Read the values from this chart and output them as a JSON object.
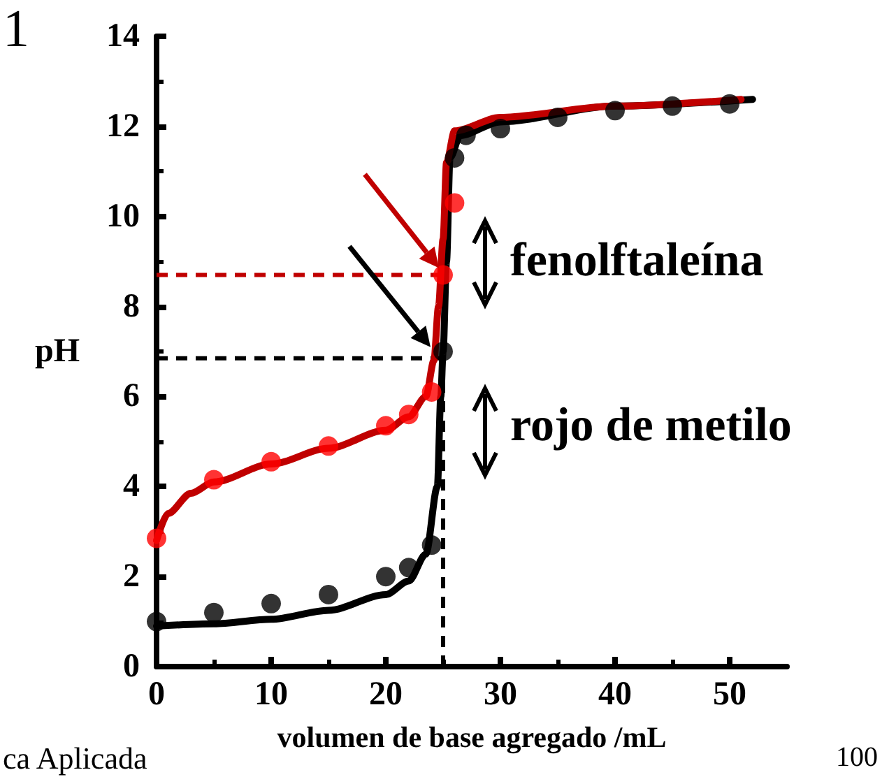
{
  "chart_data": {
    "type": "line",
    "xlabel": "volumen de base agregado /mL",
    "ylabel": "pH",
    "xlim": [
      0,
      55
    ],
    "xticks": [
      0,
      10,
      20,
      30,
      40,
      50
    ],
    "ylim": [
      0,
      14
    ],
    "yticks": [
      0,
      2,
      4,
      6,
      8,
      10,
      12,
      14
    ],
    "grid": false,
    "marker": "circle",
    "series": [
      {
        "color": "#000000",
        "marker": "none",
        "x": [
          0,
          5,
          10,
          15,
          20,
          22,
          23.5,
          24.5,
          24.8,
          25,
          25.3,
          25.6,
          26.5,
          30,
          40,
          52
        ],
        "values": [
          0.9,
          0.95,
          1.05,
          1.25,
          1.6,
          1.9,
          2.5,
          4,
          6,
          7,
          9,
          11.3,
          11.8,
          12.1,
          12.45,
          12.6
        ]
      },
      {
        "color": "#c00000",
        "marker": "none",
        "x": [
          0,
          1,
          3,
          5,
          10,
          15,
          20,
          22,
          23.5,
          24.2,
          24.6,
          25,
          25.3,
          26,
          30,
          40,
          51
        ],
        "values": [
          2.8,
          3.4,
          3.85,
          4.1,
          4.5,
          4.85,
          5.25,
          5.55,
          6,
          6.8,
          8,
          9.5,
          11.2,
          11.9,
          12.2,
          12.45,
          12.6
        ]
      },
      {
        "type": "scatter",
        "color": "#000000",
        "x": [
          0,
          5,
          10,
          15,
          20,
          22,
          24,
          25,
          26,
          27,
          30,
          35,
          40,
          45,
          50
        ],
        "values": [
          1,
          1.2,
          1.4,
          1.6,
          2,
          2.2,
          2.7,
          7,
          11.3,
          11.8,
          11.95,
          12.2,
          12.35,
          12.45,
          12.5
        ]
      },
      {
        "type": "scatter",
        "color": "#ff0000",
        "x": [
          0,
          5,
          10,
          15,
          20,
          22,
          24,
          25,
          26
        ],
        "values": [
          2.85,
          4.15,
          4.55,
          4.9,
          5.35,
          5.6,
          6.1,
          8.7,
          10.3
        ]
      }
    ],
    "ref_lines": [
      {
        "axis": "y",
        "value": 8.7,
        "color": "#c00000",
        "line_style": "dashed"
      },
      {
        "axis": "y",
        "value": 6.85,
        "color": "#000000",
        "line_style": "dashed"
      },
      {
        "axis": "x",
        "value": 25,
        "color": "#000000",
        "line_style": "dashed"
      }
    ],
    "annotations": [
      "fenolftaleína",
      "rojo de metilo",
      "1",
      "ca Aplicada",
      "100"
    ]
  }
}
